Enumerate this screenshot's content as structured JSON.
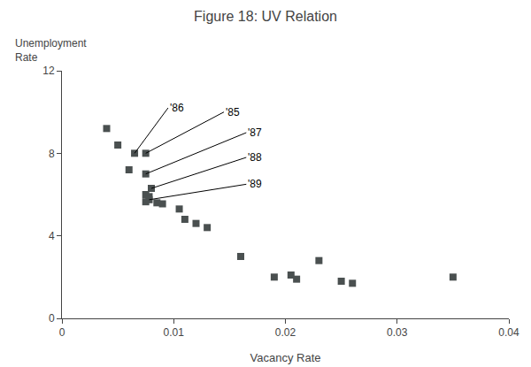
{
  "chart_data": {
    "type": "scatter",
    "title": "Figure 18: UV Relation",
    "xlabel": "Vacancy Rate",
    "ylabel": [
      "Unemployment",
      "Rate"
    ],
    "x": [
      0.004,
      0.005,
      0.0065,
      0.0075,
      0.006,
      0.0075,
      0.008,
      0.0075,
      0.0078,
      0.0078,
      0.0075,
      0.0085,
      0.009,
      0.0105,
      0.011,
      0.012,
      0.013,
      0.016,
      0.019,
      0.0205,
      0.021,
      0.023,
      0.025,
      0.026,
      0.035
    ],
    "values": [
      9.2,
      8.4,
      8.0,
      8.0,
      7.2,
      7.0,
      6.3,
      6.0,
      5.9,
      5.75,
      5.65,
      5.6,
      5.55,
      5.3,
      4.8,
      4.6,
      4.4,
      3.0,
      2.0,
      2.1,
      1.9,
      2.8,
      1.8,
      1.7,
      2.0
    ],
    "color": "#4a5050",
    "marker": "square",
    "xlim": [
      0,
      0.04
    ],
    "ylim": [
      0,
      12
    ],
    "xticks": [
      0,
      0.01,
      0.02,
      0.03,
      0.04
    ],
    "yticks": [
      0,
      4,
      8,
      12
    ],
    "grid": false,
    "annotations": [
      {
        "text": "'86",
        "text_x": 0.0095,
        "text_y": 10.2,
        "x": 0.0065,
        "y": 8.0
      },
      {
        "text": "'85",
        "text_x": 0.0145,
        "text_y": 10.0,
        "x": 0.0075,
        "y": 8.0
      },
      {
        "text": "'87",
        "text_x": 0.0165,
        "text_y": 9.0,
        "x": 0.0075,
        "y": 7.0
      },
      {
        "text": "'88",
        "text_x": 0.0165,
        "text_y": 7.8,
        "x": 0.008,
        "y": 6.3
      },
      {
        "text": "'89",
        "text_x": 0.0165,
        "text_y": 6.5,
        "x": 0.0078,
        "y": 5.75
      }
    ]
  }
}
